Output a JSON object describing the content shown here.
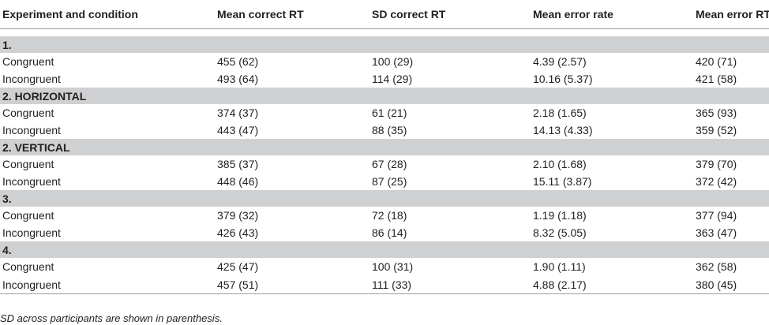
{
  "headers": [
    "Experiment and condition",
    "Mean correct RT",
    "SD correct RT",
    "Mean error rate",
    "Mean error RT"
  ],
  "groups": [
    {
      "label": "1.",
      "rows": [
        {
          "condition": "Congruent",
          "mean_rt": "455 (62)",
          "sd_rt": "100 (29)",
          "error_rate": "4.39 (2.57)",
          "error_rt": "420 (71)"
        },
        {
          "condition": "Incongruent",
          "mean_rt": "493 (64)",
          "sd_rt": "114 (29)",
          "error_rate": "10.16 (5.37)",
          "error_rt": "421 (58)"
        }
      ]
    },
    {
      "label": "2. HORIZONTAL",
      "rows": [
        {
          "condition": "Congruent",
          "mean_rt": "374 (37)",
          "sd_rt": "61 (21)",
          "error_rate": "2.18 (1.65)",
          "error_rt": "365 (93)"
        },
        {
          "condition": "Incongruent",
          "mean_rt": "443 (47)",
          "sd_rt": "88 (35)",
          "error_rate": "14.13 (4.33)",
          "error_rt": "359 (52)"
        }
      ]
    },
    {
      "label": "2. VERTICAL",
      "rows": [
        {
          "condition": "Congruent",
          "mean_rt": "385 (37)",
          "sd_rt": "67 (28)",
          "error_rate": "2.10 (1.68)",
          "error_rt": "379 (70)"
        },
        {
          "condition": "Incongruent",
          "mean_rt": "448 (46)",
          "sd_rt": "87 (25)",
          "error_rate": "15.11 (3.87)",
          "error_rt": "372 (42)"
        }
      ]
    },
    {
      "label": "3.",
      "rows": [
        {
          "condition": "Congruent",
          "mean_rt": "379 (32)",
          "sd_rt": "72 (18)",
          "error_rate": "1.19 (1.18)",
          "error_rt": "377 (94)"
        },
        {
          "condition": "Incongruent",
          "mean_rt": "426 (43)",
          "sd_rt": "86 (14)",
          "error_rate": "8.32 (5.05)",
          "error_rt": "363 (47)"
        }
      ]
    },
    {
      "label": "4.",
      "rows": [
        {
          "condition": "Congruent",
          "mean_rt": "425 (47)",
          "sd_rt": "100 (31)",
          "error_rate": "1.90 (1.11)",
          "error_rt": "362 (58)"
        },
        {
          "condition": "Incongruent",
          "mean_rt": "457 (51)",
          "sd_rt": "111 (33)",
          "error_rate": "4.88 (2.17)",
          "error_rt": "380 (45)"
        }
      ]
    }
  ],
  "footnote": "SD across participants are shown in parenthesis.",
  "colors": {
    "group_band": "#cfd0d1",
    "rule": "#9d9d9d",
    "text": "#231f20"
  }
}
